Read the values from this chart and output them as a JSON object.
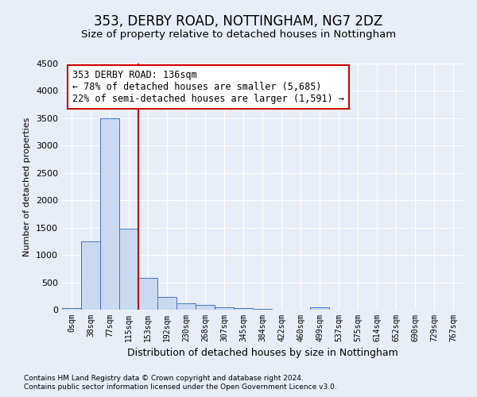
{
  "title1": "353, DERBY ROAD, NOTTINGHAM, NG7 2DZ",
  "title2": "Size of property relative to detached houses in Nottingham",
  "xlabel": "Distribution of detached houses by size in Nottingham",
  "ylabel": "Number of detached properties",
  "categories": [
    "0sqm",
    "38sqm",
    "77sqm",
    "115sqm",
    "153sqm",
    "192sqm",
    "230sqm",
    "268sqm",
    "307sqm",
    "345sqm",
    "384sqm",
    "422sqm",
    "460sqm",
    "499sqm",
    "537sqm",
    "575sqm",
    "614sqm",
    "652sqm",
    "690sqm",
    "729sqm",
    "767sqm"
  ],
  "values": [
    25,
    1250,
    3500,
    1480,
    580,
    230,
    110,
    80,
    50,
    30,
    15,
    5,
    0,
    50,
    0,
    0,
    0,
    0,
    0,
    0,
    0
  ],
  "bar_color": "#c9d9f0",
  "bar_edge_color": "#4472c4",
  "vline_x": 3.5,
  "vline_color": "#cc0000",
  "annotation_text": "353 DERBY ROAD: 136sqm\n← 78% of detached houses are smaller (5,685)\n22% of semi-detached houses are larger (1,591) →",
  "annotation_box_color": "#ffffff",
  "annotation_box_edge": "#cc0000",
  "ylim": [
    0,
    4500
  ],
  "yticks": [
    0,
    500,
    1000,
    1500,
    2000,
    2500,
    3000,
    3500,
    4000,
    4500
  ],
  "footer1": "Contains HM Land Registry data © Crown copyright and database right 2024.",
  "footer2": "Contains public sector information licensed under the Open Government Licence v3.0.",
  "bg_color": "#e8eef8",
  "grid_color": "#ffffff",
  "title1_fontsize": 12,
  "title2_fontsize": 9.5,
  "annot_fontsize": 8.5
}
